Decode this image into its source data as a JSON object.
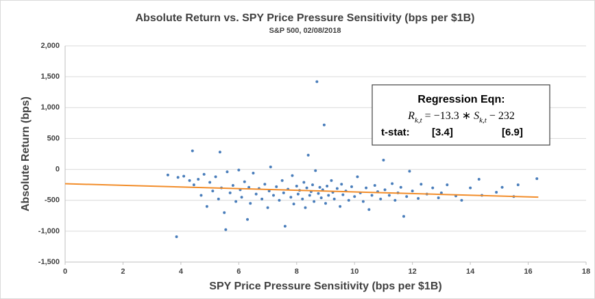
{
  "chart_data": {
    "type": "scatter",
    "title": "Absolute Return vs. SPY Price Pressure Sensitivity (bps per $1B)",
    "subtitle": "S&P 500, 02/08/2018",
    "x_label": "SPY Price Pressure Sensitivity (bps per $1B)",
    "y_label": "Absolute Return (bps)",
    "xlim": [
      0,
      18
    ],
    "xticks": [
      0,
      2,
      4,
      6,
      8,
      10,
      12,
      14,
      16,
      18
    ],
    "ylim": [
      -1500,
      2000
    ],
    "yticks": [
      {
        "value": -1500,
        "label": "-1,500"
      },
      {
        "value": -1000,
        "label": "-1,000"
      },
      -500,
      0,
      500,
      {
        "value": 1000,
        "label": "1,000"
      },
      {
        "value": 1500,
        "label": "1,500"
      },
      {
        "value": 2000,
        "label": "2,000"
      }
    ],
    "grid": true,
    "series": [
      {
        "color": "#4a7ebb",
        "x": [
          3.55,
          3.85,
          3.9,
          4.1,
          4.3,
          4.4,
          4.45,
          4.6,
          4.7,
          4.8,
          4.9,
          5.0,
          5.1,
          5.2,
          5.3,
          5.35,
          5.4,
          5.5,
          5.55,
          5.6,
          5.7,
          5.8,
          5.9,
          6.0,
          6.05,
          6.1,
          6.2,
          6.3,
          6.35,
          6.4,
          6.5,
          6.6,
          6.7,
          6.8,
          6.9,
          7.0,
          7.05,
          7.1,
          7.2,
          7.3,
          7.4,
          7.5,
          7.55,
          7.6,
          7.7,
          7.8,
          7.85,
          7.9,
          8.0,
          8.05,
          8.1,
          8.2,
          8.25,
          8.3,
          8.35,
          8.4,
          8.45,
          8.5,
          8.55,
          8.6,
          8.65,
          8.7,
          8.75,
          8.8,
          8.85,
          8.9,
          8.95,
          9.0,
          9.05,
          9.1,
          9.2,
          9.25,
          9.3,
          9.4,
          9.5,
          9.55,
          9.6,
          9.7,
          9.8,
          9.9,
          10.0,
          10.1,
          10.2,
          10.3,
          10.4,
          10.5,
          10.6,
          10.7,
          10.8,
          10.9,
          11.0,
          11.05,
          11.2,
          11.3,
          11.4,
          11.5,
          11.6,
          11.7,
          11.8,
          11.9,
          12.0,
          12.2,
          12.3,
          12.5,
          12.7,
          12.9,
          13.0,
          13.2,
          13.5,
          13.7,
          14.0,
          14.3,
          14.4,
          14.9,
          15.1,
          15.5,
          15.65,
          16.3
        ],
        "values": [
          -90,
          -1090,
          -130,
          -110,
          -180,
          300,
          -250,
          -160,
          -420,
          -80,
          -600,
          -210,
          -350,
          -120,
          -480,
          280,
          -300,
          -700,
          -975,
          -40,
          -380,
          -260,
          -520,
          -10,
          -330,
          -450,
          -200,
          -810,
          -290,
          -550,
          -60,
          -400,
          -310,
          -480,
          -240,
          -620,
          -350,
          40,
          -420,
          -280,
          -500,
          -180,
          -380,
          -920,
          -320,
          -450,
          -100,
          -560,
          -270,
          -400,
          -340,
          -480,
          -210,
          -620,
          -300,
          230,
          -420,
          -360,
          -250,
          -520,
          -20,
          1420,
          -390,
          -290,
          -460,
          -330,
          720,
          -550,
          -270,
          -420,
          -180,
          -370,
          -480,
          -310,
          -600,
          -240,
          -410,
          -350,
          -500,
          -280,
          -440,
          -120,
          -380,
          -520,
          -300,
          -650,
          -420,
          -260,
          -360,
          -480,
          150,
          -330,
          -420,
          -230,
          -500,
          -380,
          -290,
          -760,
          -440,
          -30,
          -350,
          -470,
          -240,
          -400,
          -300,
          -460,
          -380,
          -250,
          -430,
          -500,
          -300,
          -160,
          -420,
          -370,
          -290,
          -440,
          -250,
          -150
        ]
      },
      {
        "type": "line",
        "color": "#f28c28",
        "x": [
          0,
          16.35
        ],
        "values": [
          -232,
          -449
        ]
      }
    ],
    "annotation": {
      "heading": "Regression Eqn:",
      "equation": [
        {
          "text": "R"
        },
        {
          "text": "k,t",
          "sub": true
        },
        {
          "text": " = −13.3 ∗ "
        },
        {
          "text": "S"
        },
        {
          "text": "k,t",
          "sub": true
        },
        {
          "text": " − 232"
        }
      ],
      "stat_label": "t-stat:",
      "stats": [
        "[3.4]",
        "[6.9]"
      ]
    }
  }
}
